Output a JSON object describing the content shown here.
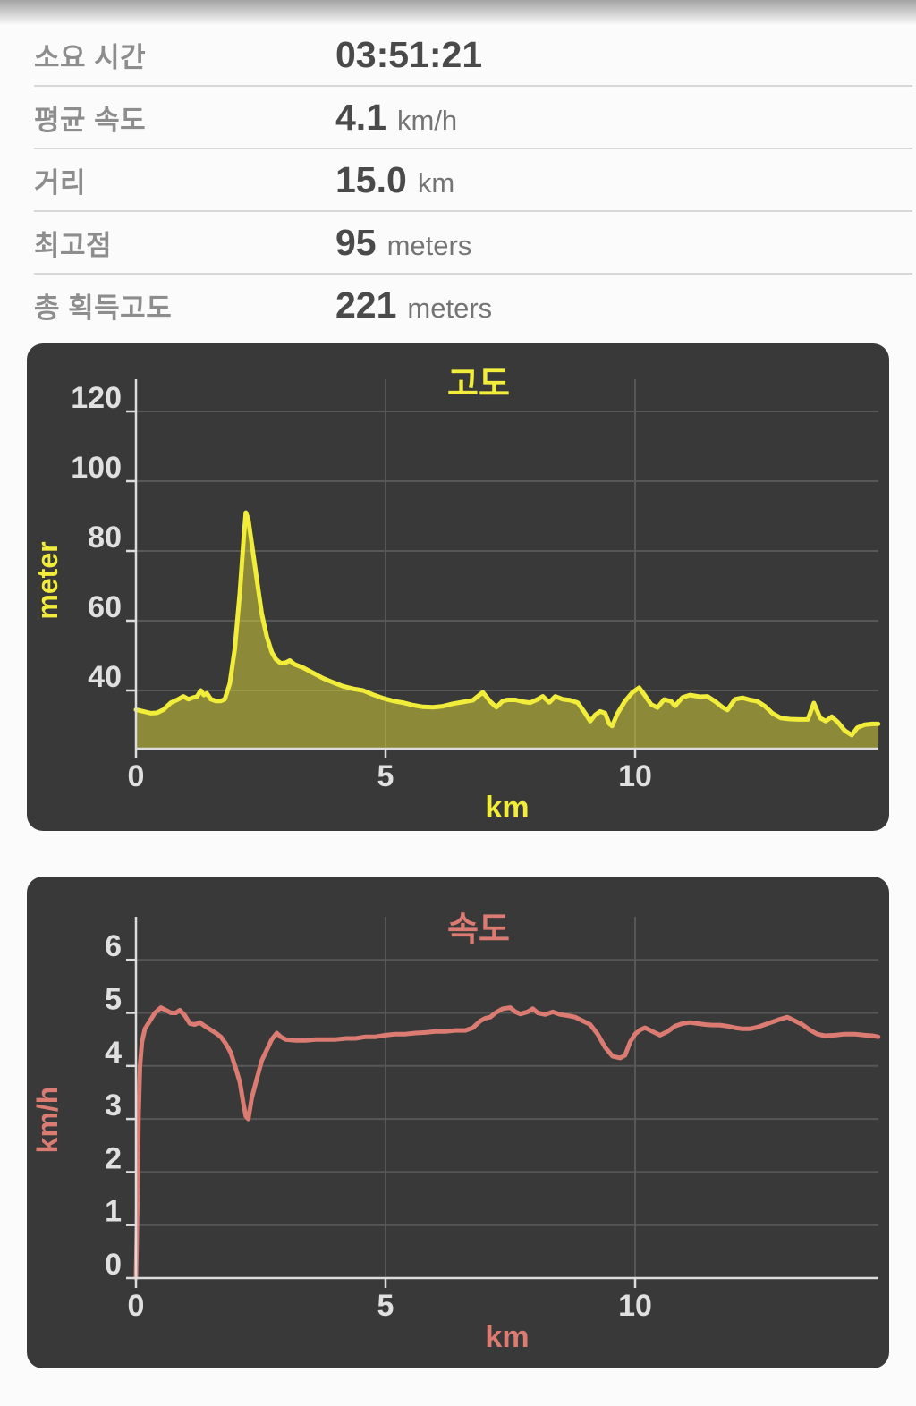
{
  "stats": {
    "rows": [
      {
        "label": "소요 시간",
        "value": "03:51:21",
        "unit": ""
      },
      {
        "label": "평균 속도",
        "value": "4.1",
        "unit": "km/h"
      },
      {
        "label": "거리",
        "value": "15.0",
        "unit": "km"
      },
      {
        "label": "최고점",
        "value": "95",
        "unit": "meters"
      },
      {
        "label": "총 획득고도",
        "value": "221",
        "unit": "meters"
      }
    ]
  },
  "colors": {
    "card_background": "#393939",
    "altitude_line": "#f1ed3a",
    "altitude_fill_opacity": 0.45,
    "speed_line": "#db7b72",
    "grid": "#575757",
    "axis": "#dcdcdc",
    "tick_label": "#e0e0e0"
  },
  "chart_data": [
    {
      "type": "area",
      "title": "고도",
      "xlabel": "km",
      "ylabel": "meter",
      "x_ticks": [
        0,
        5,
        10
      ],
      "y_ticks": [
        40,
        60,
        80,
        100,
        120
      ],
      "xlim": [
        0,
        14.87
      ],
      "ylim": [
        23,
        129
      ],
      "grid": true,
      "line_color": "#f1ed3a",
      "points": [
        [
          0,
          34.5
        ],
        [
          0.15,
          34
        ],
        [
          0.3,
          33.5
        ],
        [
          0.42,
          33.6
        ],
        [
          0.55,
          34.5
        ],
        [
          0.7,
          36.5
        ],
        [
          0.85,
          37.5
        ],
        [
          0.95,
          38.3
        ],
        [
          1.05,
          37.5
        ],
        [
          1.15,
          38
        ],
        [
          1.22,
          38.2
        ],
        [
          1.3,
          40
        ],
        [
          1.36,
          38.7
        ],
        [
          1.42,
          39.2
        ],
        [
          1.5,
          37.5
        ],
        [
          1.6,
          37
        ],
        [
          1.7,
          37
        ],
        [
          1.78,
          37.5
        ],
        [
          1.88,
          42
        ],
        [
          1.98,
          52
        ],
        [
          2.08,
          68
        ],
        [
          2.16,
          84
        ],
        [
          2.2,
          91
        ],
        [
          2.25,
          89
        ],
        [
          2.32,
          82
        ],
        [
          2.42,
          72
        ],
        [
          2.52,
          62
        ],
        [
          2.62,
          55.5
        ],
        [
          2.72,
          51
        ],
        [
          2.8,
          49
        ],
        [
          2.9,
          47.8
        ],
        [
          3.0,
          48
        ],
        [
          3.08,
          48.6
        ],
        [
          3.18,
          47.5
        ],
        [
          3.35,
          46.5
        ],
        [
          3.55,
          45
        ],
        [
          3.75,
          43.5
        ],
        [
          3.95,
          42.3
        ],
        [
          4.15,
          41.2
        ],
        [
          4.35,
          40.5
        ],
        [
          4.55,
          40
        ],
        [
          4.75,
          38.8
        ],
        [
          4.95,
          37.8
        ],
        [
          5.15,
          37
        ],
        [
          5.35,
          36.5
        ],
        [
          5.55,
          35.8
        ],
        [
          5.75,
          35.3
        ],
        [
          5.95,
          35.2
        ],
        [
          6.15,
          35.5
        ],
        [
          6.35,
          36.2
        ],
        [
          6.55,
          36.7
        ],
        [
          6.75,
          37.2
        ],
        [
          6.95,
          39.5
        ],
        [
          7.1,
          36.8
        ],
        [
          7.22,
          35.2
        ],
        [
          7.35,
          37
        ],
        [
          7.45,
          37.3
        ],
        [
          7.6,
          37.3
        ],
        [
          7.75,
          36.8
        ],
        [
          7.9,
          36.5
        ],
        [
          8.05,
          37.5
        ],
        [
          8.15,
          38.3
        ],
        [
          8.28,
          36.6
        ],
        [
          8.4,
          38.3
        ],
        [
          8.55,
          37.5
        ],
        [
          8.7,
          37.2
        ],
        [
          8.85,
          36.5
        ],
        [
          9.0,
          33.5
        ],
        [
          9.1,
          31.2
        ],
        [
          9.2,
          33
        ],
        [
          9.3,
          34
        ],
        [
          9.4,
          33.5
        ],
        [
          9.48,
          30.5
        ],
        [
          9.54,
          29.8
        ],
        [
          9.65,
          33.5
        ],
        [
          9.8,
          37
        ],
        [
          9.95,
          39.5
        ],
        [
          10.08,
          40.8
        ],
        [
          10.2,
          38.5
        ],
        [
          10.32,
          36
        ],
        [
          10.45,
          35.1
        ],
        [
          10.58,
          37.4
        ],
        [
          10.72,
          36.9
        ],
        [
          10.8,
          35.6
        ],
        [
          10.95,
          38
        ],
        [
          11.1,
          38.7
        ],
        [
          11.3,
          38.2
        ],
        [
          11.45,
          38.3
        ],
        [
          11.6,
          36.9
        ],
        [
          11.75,
          35.2
        ],
        [
          11.85,
          34.4
        ],
        [
          12.0,
          37.5
        ],
        [
          12.15,
          37.9
        ],
        [
          12.3,
          37.3
        ],
        [
          12.45,
          36.9
        ],
        [
          12.6,
          35.5
        ],
        [
          12.75,
          33.5
        ],
        [
          12.92,
          32.1
        ],
        [
          13.1,
          31.8
        ],
        [
          13.3,
          31.7
        ],
        [
          13.46,
          31.7
        ],
        [
          13.58,
          36.4
        ],
        [
          13.71,
          32.1
        ],
        [
          13.82,
          31.2
        ],
        [
          13.94,
          32.5
        ],
        [
          14.07,
          30.8
        ],
        [
          14.2,
          28.5
        ],
        [
          14.34,
          27.2
        ],
        [
          14.45,
          29.3
        ],
        [
          14.6,
          30.2
        ],
        [
          14.75,
          30.4
        ],
        [
          14.87,
          30.4
        ]
      ]
    },
    {
      "type": "line",
      "title": "속도",
      "xlabel": "km",
      "ylabel": "km/h",
      "x_ticks": [
        0,
        5,
        10
      ],
      "y_ticks": [
        0,
        1,
        2,
        3,
        4,
        5,
        6
      ],
      "xlim": [
        0,
        14.87
      ],
      "ylim": [
        0,
        6.8
      ],
      "grid": true,
      "line_color": "#db7b72",
      "points": [
        [
          0,
          0
        ],
        [
          0.03,
          1.5
        ],
        [
          0.05,
          3.0
        ],
        [
          0.08,
          4.0
        ],
        [
          0.12,
          4.45
        ],
        [
          0.18,
          4.7
        ],
        [
          0.28,
          4.85
        ],
        [
          0.38,
          5.0
        ],
        [
          0.5,
          5.1
        ],
        [
          0.6,
          5.05
        ],
        [
          0.7,
          5.0
        ],
        [
          0.8,
          5.0
        ],
        [
          0.88,
          5.05
        ],
        [
          0.98,
          4.95
        ],
        [
          1.08,
          4.8
        ],
        [
          1.18,
          4.78
        ],
        [
          1.28,
          4.82
        ],
        [
          1.38,
          4.75
        ],
        [
          1.5,
          4.68
        ],
        [
          1.6,
          4.62
        ],
        [
          1.7,
          4.55
        ],
        [
          1.8,
          4.42
        ],
        [
          1.9,
          4.25
        ],
        [
          2.0,
          3.95
        ],
        [
          2.08,
          3.7
        ],
        [
          2.15,
          3.3
        ],
        [
          2.2,
          3.05
        ],
        [
          2.25,
          3.0
        ],
        [
          2.32,
          3.4
        ],
        [
          2.42,
          3.75
        ],
        [
          2.52,
          4.1
        ],
        [
          2.62,
          4.3
        ],
        [
          2.72,
          4.5
        ],
        [
          2.82,
          4.62
        ],
        [
          2.9,
          4.55
        ],
        [
          3.0,
          4.5
        ],
        [
          3.2,
          4.48
        ],
        [
          3.4,
          4.48
        ],
        [
          3.6,
          4.5
        ],
        [
          3.8,
          4.5
        ],
        [
          4.0,
          4.5
        ],
        [
          4.2,
          4.52
        ],
        [
          4.4,
          4.52
        ],
        [
          4.6,
          4.55
        ],
        [
          4.8,
          4.55
        ],
        [
          5.0,
          4.58
        ],
        [
          5.2,
          4.6
        ],
        [
          5.4,
          4.6
        ],
        [
          5.6,
          4.62
        ],
        [
          5.8,
          4.63
        ],
        [
          6.0,
          4.65
        ],
        [
          6.2,
          4.65
        ],
        [
          6.4,
          4.67
        ],
        [
          6.6,
          4.67
        ],
        [
          6.75,
          4.72
        ],
        [
          6.9,
          4.85
        ],
        [
          7.0,
          4.9
        ],
        [
          7.1,
          4.92
        ],
        [
          7.2,
          5.0
        ],
        [
          7.35,
          5.08
        ],
        [
          7.5,
          5.1
        ],
        [
          7.6,
          5.02
        ],
        [
          7.7,
          4.98
        ],
        [
          7.85,
          5.02
        ],
        [
          7.95,
          5.08
        ],
        [
          8.05,
          5.0
        ],
        [
          8.2,
          4.97
        ],
        [
          8.35,
          5.02
        ],
        [
          8.5,
          4.97
        ],
        [
          8.65,
          4.95
        ],
        [
          8.8,
          4.92
        ],
        [
          8.95,
          4.85
        ],
        [
          9.1,
          4.78
        ],
        [
          9.25,
          4.6
        ],
        [
          9.4,
          4.35
        ],
        [
          9.55,
          4.18
        ],
        [
          9.7,
          4.15
        ],
        [
          9.8,
          4.2
        ],
        [
          9.9,
          4.45
        ],
        [
          10.0,
          4.6
        ],
        [
          10.1,
          4.68
        ],
        [
          10.2,
          4.72
        ],
        [
          10.35,
          4.65
        ],
        [
          10.5,
          4.58
        ],
        [
          10.65,
          4.65
        ],
        [
          10.8,
          4.75
        ],
        [
          10.95,
          4.8
        ],
        [
          11.1,
          4.82
        ],
        [
          11.25,
          4.8
        ],
        [
          11.4,
          4.78
        ],
        [
          11.55,
          4.77
        ],
        [
          11.7,
          4.77
        ],
        [
          11.85,
          4.75
        ],
        [
          12.0,
          4.72
        ],
        [
          12.15,
          4.7
        ],
        [
          12.3,
          4.7
        ],
        [
          12.45,
          4.73
        ],
        [
          12.6,
          4.78
        ],
        [
          12.75,
          4.83
        ],
        [
          12.9,
          4.88
        ],
        [
          13.05,
          4.92
        ],
        [
          13.2,
          4.85
        ],
        [
          13.35,
          4.78
        ],
        [
          13.5,
          4.68
        ],
        [
          13.65,
          4.6
        ],
        [
          13.8,
          4.57
        ],
        [
          14.0,
          4.58
        ],
        [
          14.2,
          4.6
        ],
        [
          14.4,
          4.6
        ],
        [
          14.6,
          4.58
        ],
        [
          14.75,
          4.57
        ],
        [
          14.87,
          4.55
        ]
      ]
    }
  ]
}
